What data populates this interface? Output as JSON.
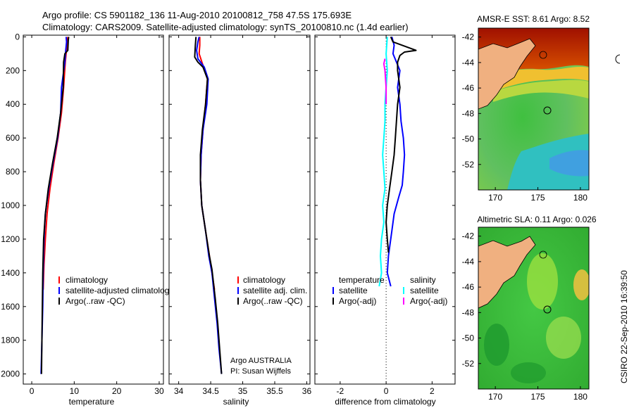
{
  "header": {
    "line1": "Argo profile: CS 5901182_136 11-Aug-2010 20100812_758 47.5S 175.693E",
    "line2": "Climatology: CARS2009. Satellite-adjusted climatology: synTS_20100810.nc (1.4d earlier)"
  },
  "side_label": "CSIRO 22-Sep-2010 16:39:50",
  "colors": {
    "red": "#ff0000",
    "blue": "#0000ff",
    "black": "#000000",
    "cyan": "#00ffff",
    "magenta": "#ff00ff"
  },
  "chart_data": [
    {
      "type": "line",
      "id": "temperature",
      "xlabel": "temperature",
      "ylabel": "",
      "xlim": [
        -2,
        31
      ],
      "ylim": [
        2060,
        -10
      ],
      "xticks": [
        0,
        10,
        20,
        30
      ],
      "yticks": [
        0,
        200,
        400,
        600,
        800,
        1000,
        1200,
        1400,
        1600,
        1800,
        2000
      ],
      "legend": {
        "position": "bottom-left",
        "entries": [
          {
            "label": "climatology",
            "color": "red"
          },
          {
            "label": "satellite-adjusted climatology",
            "color": "blue"
          },
          {
            "label": "Argo(..raw -QC)",
            "color": "black"
          }
        ]
      },
      "series": [
        {
          "name": "climatology",
          "color": "red",
          "points": [
            [
              8.5,
              0
            ],
            [
              8.3,
              50
            ],
            [
              7.9,
              150
            ],
            [
              7.5,
              300
            ],
            [
              7.0,
              450
            ],
            [
              6.2,
              600
            ],
            [
              5.2,
              750
            ],
            [
              4.3,
              900
            ],
            [
              3.6,
              1050
            ],
            [
              3.2,
              1200
            ],
            [
              2.9,
              1350
            ],
            [
              2.7,
              1500
            ]
          ]
        },
        {
          "name": "satellite-adjusted climatology",
          "color": "blue",
          "points": [
            [
              8.1,
              0
            ],
            [
              8.2,
              30
            ],
            [
              8.0,
              80
            ],
            [
              7.8,
              150
            ],
            [
              7.0,
              300
            ],
            [
              6.8,
              450
            ],
            [
              6.1,
              600
            ],
            [
              5.0,
              750
            ],
            [
              4.0,
              900
            ],
            [
              3.2,
              1050
            ],
            [
              2.9,
              1200
            ],
            [
              2.7,
              1400
            ],
            [
              2.6,
              1600
            ],
            [
              2.4,
              1800
            ],
            [
              2.2,
              2000
            ]
          ]
        },
        {
          "name": "Argo(..raw -QC)",
          "color": "black",
          "points": [
            [
              8.7,
              0
            ],
            [
              8.6,
              20
            ],
            [
              8.5,
              80
            ],
            [
              7.8,
              100
            ],
            [
              7.5,
              150
            ],
            [
              7.4,
              300
            ],
            [
              6.8,
              450
            ],
            [
              6.0,
              600
            ],
            [
              4.9,
              750
            ],
            [
              3.9,
              900
            ],
            [
              3.2,
              1050
            ],
            [
              2.8,
              1200
            ],
            [
              2.6,
              1400
            ],
            [
              2.5,
              1600
            ],
            [
              2.4,
              1800
            ],
            [
              2.3,
              2000
            ]
          ]
        }
      ]
    },
    {
      "type": "line",
      "id": "salinity",
      "xlabel": "salinity",
      "ylabel": "",
      "xlim": [
        33.85,
        36.05
      ],
      "ylim": [
        2060,
        -10
      ],
      "xticks": [
        34,
        34.5,
        35,
        35.5,
        36
      ],
      "yticks": [
        0,
        200,
        400,
        600,
        800,
        1000,
        1200,
        1400,
        1600,
        1800,
        2000
      ],
      "legend": {
        "position": "bottom-right",
        "entries": [
          {
            "label": "climatology",
            "color": "red"
          },
          {
            "label": "satellite adj. clim.",
            "color": "blue"
          },
          {
            "label": "Argo(..raw -QC)",
            "color": "black"
          }
        ]
      },
      "annotations": [
        "Argo AUSTRALIA",
        "PI: Susan Wijffels"
      ],
      "series": [
        {
          "name": "climatology",
          "color": "red",
          "points": [
            [
              34.33,
              0
            ],
            [
              34.33,
              50
            ],
            [
              34.32,
              100
            ],
            [
              34.38,
              170
            ],
            [
              34.45,
              250
            ],
            [
              34.42,
              400
            ],
            [
              34.38,
              550
            ],
            [
              34.35,
              700
            ],
            [
              34.34,
              850
            ],
            [
              34.36,
              1000
            ],
            [
              34.42,
              1150
            ],
            [
              34.48,
              1300
            ],
            [
              34.52,
              1400
            ],
            [
              34.56,
              1500
            ]
          ]
        },
        {
          "name": "satellite adj. clim.",
          "color": "blue",
          "points": [
            [
              34.32,
              0
            ],
            [
              34.3,
              30
            ],
            [
              34.28,
              80
            ],
            [
              34.3,
              130
            ],
            [
              34.4,
              180
            ],
            [
              34.46,
              250
            ],
            [
              34.44,
              400
            ],
            [
              34.38,
              550
            ],
            [
              34.35,
              700
            ],
            [
              34.34,
              850
            ],
            [
              34.36,
              1000
            ],
            [
              34.42,
              1150
            ],
            [
              34.47,
              1300
            ],
            [
              34.52,
              1400
            ],
            [
              34.56,
              1550
            ],
            [
              34.6,
              1700
            ],
            [
              34.63,
              1850
            ],
            [
              34.67,
              2000
            ]
          ]
        },
        {
          "name": "Argo(..raw -QC)",
          "color": "black",
          "points": [
            [
              34.27,
              0
            ],
            [
              34.26,
              50
            ],
            [
              34.25,
              120
            ],
            [
              34.3,
              150
            ],
            [
              34.38,
              180
            ],
            [
              34.45,
              250
            ],
            [
              34.42,
              400
            ],
            [
              34.37,
              550
            ],
            [
              34.34,
              700
            ],
            [
              34.34,
              850
            ],
            [
              34.36,
              1000
            ],
            [
              34.42,
              1150
            ],
            [
              34.48,
              1300
            ],
            [
              34.52,
              1380
            ],
            [
              34.57,
              1550
            ],
            [
              34.61,
              1700
            ],
            [
              34.64,
              1850
            ],
            [
              34.67,
              2000
            ]
          ]
        }
      ]
    },
    {
      "type": "line",
      "id": "difference",
      "xlabel": "difference from climatology",
      "ylabel": "",
      "xlim": [
        -3.1,
        3.0
      ],
      "ylim": [
        2060,
        -10
      ],
      "xticks": [
        -2,
        0,
        2
      ],
      "yticks": [
        0,
        200,
        400,
        600,
        800,
        1000,
        1200,
        1400,
        1600,
        1800,
        2000
      ],
      "legend": {
        "position": "bottom",
        "entries": [
          {
            "label": "temperature",
            "group": "temperature",
            "color": ""
          },
          {
            "label": "satellite",
            "group": "temperature",
            "color": "blue"
          },
          {
            "label": "Argo(-adj)",
            "group": "temperature",
            "color": "black"
          },
          {
            "label": "salinity",
            "group": "salinity",
            "color": ""
          },
          {
            "label": "satellite",
            "group": "salinity",
            "color": "cyan"
          },
          {
            "label": "Argo(-adj)",
            "group": "salinity",
            "color": "magenta"
          }
        ]
      },
      "series": [
        {
          "name": "temperature satellite",
          "color": "blue",
          "points": [
            [
              0.25,
              0
            ],
            [
              0.35,
              50
            ],
            [
              0.3,
              100
            ],
            [
              0.45,
              150
            ],
            [
              0.6,
              200
            ],
            [
              0.5,
              300
            ],
            [
              0.6,
              400
            ],
            [
              0.65,
              500
            ],
            [
              0.75,
              600
            ],
            [
              0.8,
              700
            ],
            [
              0.75,
              800
            ],
            [
              0.7,
              880
            ],
            [
              0.55,
              950
            ],
            [
              0.35,
              1050
            ],
            [
              0.25,
              1150
            ],
            [
              0.1,
              1300
            ],
            [
              0.05,
              1400
            ],
            [
              0.2,
              1480
            ]
          ]
        },
        {
          "name": "temperature Argo(-adj)",
          "color": "black",
          "points": [
            [
              0.2,
              0
            ],
            [
              0.3,
              30
            ],
            [
              1.3,
              80
            ],
            [
              0.8,
              90
            ],
            [
              0.6,
              110
            ],
            [
              0.5,
              150
            ],
            [
              0.5,
              200
            ],
            [
              0.6,
              300
            ],
            [
              0.5,
              400
            ],
            [
              0.45,
              500
            ],
            [
              0.4,
              600
            ],
            [
              0.35,
              700
            ],
            [
              0.25,
              800
            ],
            [
              0.15,
              900
            ],
            [
              0.05,
              1000
            ],
            [
              0,
              1100
            ],
            [
              0.05,
              1200
            ],
            [
              0.1,
              1280
            ]
          ]
        },
        {
          "name": "salinity satellite",
          "color": "cyan",
          "points": [
            [
              0.05,
              0
            ],
            [
              0.0,
              100
            ],
            [
              0.05,
              200
            ],
            [
              0.0,
              300
            ],
            [
              -0.05,
              400
            ],
            [
              -0.05,
              500
            ],
            [
              -0.1,
              600
            ],
            [
              -0.15,
              700
            ],
            [
              -0.1,
              800
            ],
            [
              -0.05,
              900
            ],
            [
              -0.15,
              1000
            ],
            [
              -0.1,
              1100
            ],
            [
              -0.2,
              1200
            ],
            [
              -0.25,
              1300
            ],
            [
              -0.2,
              1400
            ],
            [
              -0.3,
              1480
            ]
          ]
        },
        {
          "name": "salinity Argo(-adj)",
          "color": "magenta",
          "points": [
            [
              -0.05,
              130
            ],
            [
              -0.1,
              160
            ],
            [
              -0.05,
              200
            ],
            [
              0.0,
              300
            ],
            [
              0.0,
              400
            ]
          ]
        }
      ]
    }
  ],
  "maps": [
    {
      "id": "sst",
      "title": "AMSR-E SST: 8.61 Argo: 8.52",
      "xticks": [
        170,
        175,
        180
      ],
      "yticks": [
        -42,
        -44,
        -46,
        -48,
        -50,
        -52
      ],
      "xlim": [
        168,
        181
      ],
      "ylim": [
        -54,
        -41.3
      ]
    },
    {
      "id": "sla",
      "title": "Altimetric SLA: 0.11 Argo: 0.026",
      "xticks": [
        170,
        175,
        180
      ],
      "yticks": [
        -42,
        -44,
        -46,
        -48,
        -50,
        -52
      ],
      "xlim": [
        168,
        181
      ],
      "ylim": [
        -54,
        -41.3
      ]
    }
  ]
}
